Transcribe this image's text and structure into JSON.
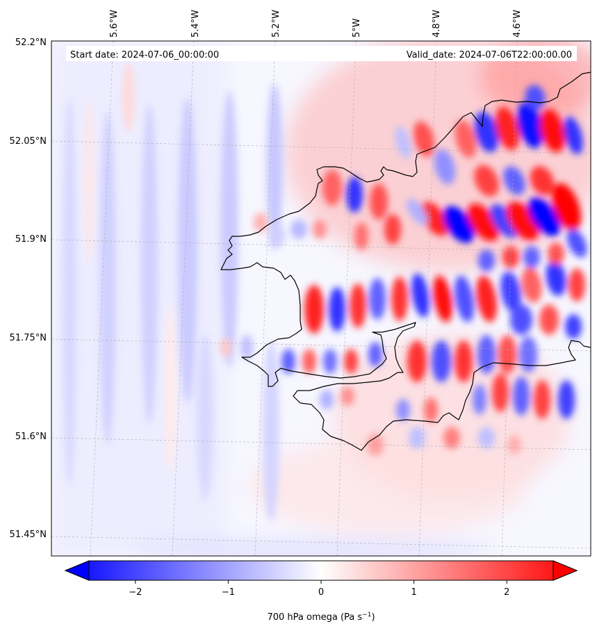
{
  "map": {
    "start_date": "Start date: 2024-07-06_00:00:00",
    "valid_date": "Valid_date: 2024-07-06T22:00:00.00",
    "lon_labels": [
      "5.6°W",
      "5.4°W",
      "5.2°W",
      "5°W",
      "4.8°W",
      "4.6°W"
    ],
    "lat_labels": [
      "52.2°N",
      "52.05°N",
      "51.9°N",
      "51.75°N",
      "51.6°N",
      "51.45°N"
    ],
    "colorbar": {
      "ticks": [
        "−2",
        "−1",
        "0",
        "1",
        "2"
      ],
      "tick_values": [
        -2,
        -1,
        0,
        1,
        2
      ],
      "range": [
        -2.5,
        2.5
      ],
      "label_prefix": "700 hPa omega (Pa s",
      "label_exp": "−1",
      "label_suffix": ")",
      "colormap": "bwr",
      "color_min": "#0000ff",
      "color_mid": "#ffffff",
      "color_max": "#ff0000"
    }
  }
}
